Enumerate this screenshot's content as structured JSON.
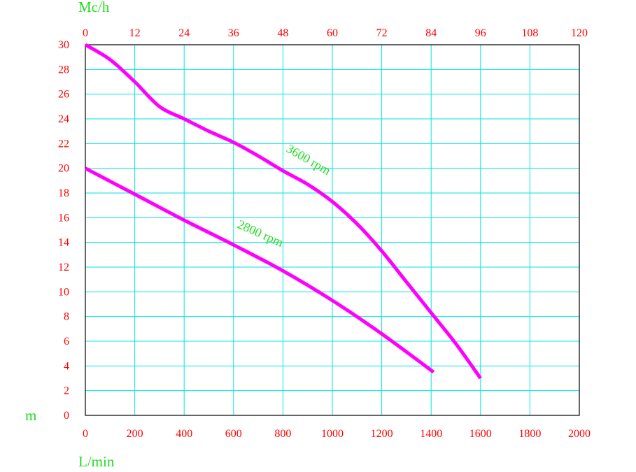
{
  "chart_data": {
    "type": "line",
    "xlabel": "L/min",
    "x2label": "Mc/h",
    "ylabel": "m",
    "xlim": [
      0,
      2000
    ],
    "x2lim": [
      0,
      120
    ],
    "ylim": [
      0,
      30
    ],
    "x_ticks": [
      "0",
      "200",
      "400",
      "600",
      "800",
      "1000",
      "1200",
      "1400",
      "1600",
      "1800",
      "2000"
    ],
    "x2_ticks": [
      "0",
      "12",
      "24",
      "36",
      "48",
      "60",
      "72",
      "84",
      "96",
      "108",
      "120"
    ],
    "y_ticks": [
      "0",
      "2",
      "4",
      "6",
      "8",
      "10",
      "12",
      "14",
      "16",
      "18",
      "20",
      "22",
      "24",
      "26",
      "28",
      "30"
    ],
    "grid": true,
    "colors": {
      "line": "#ff00ff",
      "grid": "#00e5e5",
      "tick": "#ff0000",
      "label": "#22dd22"
    },
    "series": [
      {
        "name": "3600 rpm",
        "points": [
          [
            0,
            30
          ],
          [
            100,
            28.8
          ],
          [
            200,
            27
          ],
          [
            300,
            25
          ],
          [
            400,
            24
          ],
          [
            500,
            23
          ],
          [
            600,
            22.1
          ],
          [
            700,
            21
          ],
          [
            800,
            19.8
          ],
          [
            900,
            18.7
          ],
          [
            1000,
            17.3
          ],
          [
            1100,
            15.5
          ],
          [
            1200,
            13.3
          ],
          [
            1300,
            10.8
          ],
          [
            1400,
            8.3
          ],
          [
            1500,
            5.8
          ],
          [
            1600,
            3
          ]
        ]
      },
      {
        "name": "2800 rpm",
        "points": [
          [
            0,
            20
          ],
          [
            200,
            17.9
          ],
          [
            400,
            15.8
          ],
          [
            600,
            13.8
          ],
          [
            800,
            11.7
          ],
          [
            1000,
            9.3
          ],
          [
            1200,
            6.6
          ],
          [
            1410,
            3.5
          ]
        ]
      }
    ]
  }
}
